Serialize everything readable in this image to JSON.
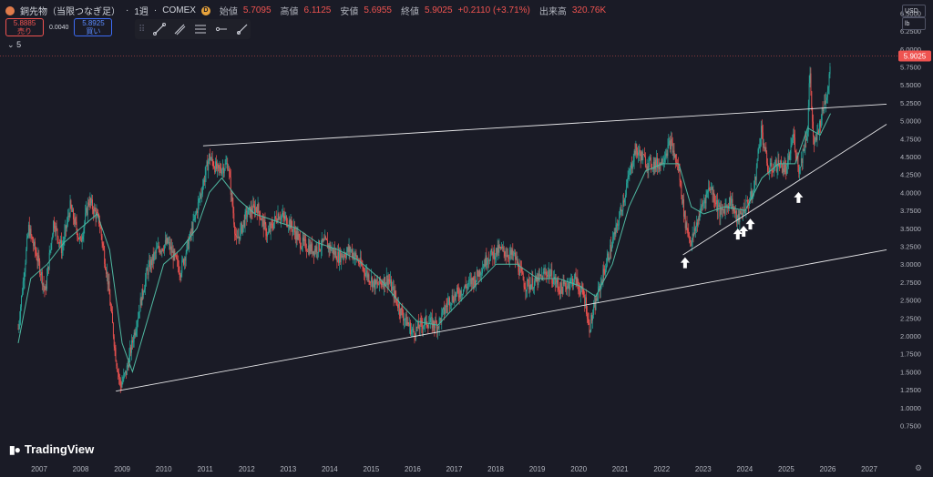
{
  "header": {
    "symbol": "銅先物（当限つなぎ足）",
    "interval": "1週",
    "exchange": "COMEX",
    "live_badge": "D",
    "open_label": "始値",
    "open_value": "5.7095",
    "high_label": "高値",
    "high_value": "6.1125",
    "low_label": "安値",
    "low_value": "5.6955",
    "close_label": "終値",
    "close_value": "5.9025",
    "change_value": "+0.2110 (+3.71%)",
    "volume_label": "出来高",
    "volume_value": "320.76K"
  },
  "quote": {
    "sell_price": "5.8885",
    "sell_label": "売り",
    "spread": "0.0040",
    "buy_price": "5.8925",
    "buy_label": "買い"
  },
  "indicator": {
    "label": "5",
    "chevron": "⌄"
  },
  "toolbar": {
    "grip_icon": "drag-grip-icon",
    "tools": [
      {
        "name": "trend-line-tool-icon"
      },
      {
        "name": "trend-angle-tool-icon"
      },
      {
        "name": "fib-retracement-tool-icon"
      },
      {
        "name": "horizontal-ray-tool-icon"
      },
      {
        "name": "ray-tool-icon"
      }
    ]
  },
  "unit_selectors": {
    "currency": "USD",
    "unit": "lb"
  },
  "branding": {
    "logo_text": "TradingView"
  },
  "colors": {
    "background": "#1a1b26",
    "up": "#26a69a",
    "down": "#ef5350",
    "moving_average": "#4fb7a0",
    "trendline": "#e8e8ea",
    "price_tag": "#ef5350"
  },
  "chart_data": {
    "type": "candlestick",
    "title": "銅先物（当限つなぎ足）",
    "xlabel": "",
    "ylabel": "",
    "y_ticks": [
      "0.7500",
      "1.0000",
      "1.2500",
      "1.5000",
      "1.7500",
      "2.0000",
      "2.2500",
      "2.5000",
      "2.7500",
      "3.0000",
      "3.2500",
      "3.5000",
      "3.7500",
      "4.0000",
      "4.2500",
      "4.5000",
      "4.7500",
      "5.0000",
      "5.2500",
      "5.5000",
      "5.7500",
      "6.0000",
      "6.2500",
      "6.5000"
    ],
    "x_ticks": [
      "2007",
      "2008",
      "2009",
      "2010",
      "2011",
      "2012",
      "2013",
      "2014",
      "2015",
      "2016",
      "2017",
      "2018",
      "2019",
      "2020",
      "2021",
      "2022",
      "2023",
      "2024",
      "2025",
      "2026",
      "2027"
    ],
    "last_price": "5.9025",
    "grid": false,
    "price_path": [
      [
        2006.5,
        2.1
      ],
      [
        2006.75,
        3.5
      ],
      [
        2007.0,
        3.0
      ],
      [
        2007.15,
        2.6
      ],
      [
        2007.35,
        3.6
      ],
      [
        2007.55,
        3.2
      ],
      [
        2007.75,
        3.8
      ],
      [
        2008.0,
        3.3
      ],
      [
        2008.2,
        3.9
      ],
      [
        2008.45,
        3.6
      ],
      [
        2008.65,
        2.8
      ],
      [
        2008.85,
        1.7
      ],
      [
        2008.96,
        1.3
      ],
      [
        2009.1,
        1.5
      ],
      [
        2009.35,
        2.2
      ],
      [
        2009.6,
        2.9
      ],
      [
        2009.85,
        3.2
      ],
      [
        2010.1,
        3.3
      ],
      [
        2010.4,
        2.9
      ],
      [
        2010.65,
        3.4
      ],
      [
        2010.9,
        4.0
      ],
      [
        2011.1,
        4.5
      ],
      [
        2011.3,
        4.3
      ],
      [
        2011.55,
        4.4
      ],
      [
        2011.75,
        3.3
      ],
      [
        2012.0,
        3.7
      ],
      [
        2012.25,
        3.8
      ],
      [
        2012.5,
        3.4
      ],
      [
        2012.75,
        3.7
      ],
      [
        2013.0,
        3.6
      ],
      [
        2013.3,
        3.3
      ],
      [
        2013.6,
        3.2
      ],
      [
        2013.9,
        3.3
      ],
      [
        2014.2,
        3.1
      ],
      [
        2014.5,
        3.2
      ],
      [
        2014.85,
        2.9
      ],
      [
        2015.1,
        2.7
      ],
      [
        2015.4,
        2.8
      ],
      [
        2015.7,
        2.35
      ],
      [
        2016.0,
        2.05
      ],
      [
        2016.3,
        2.2
      ],
      [
        2016.6,
        2.15
      ],
      [
        2016.87,
        2.5
      ],
      [
        2017.2,
        2.65
      ],
      [
        2017.5,
        2.8
      ],
      [
        2017.8,
        3.1
      ],
      [
        2018.1,
        3.2
      ],
      [
        2018.45,
        3.1
      ],
      [
        2018.7,
        2.7
      ],
      [
        2018.95,
        2.75
      ],
      [
        2019.25,
        2.9
      ],
      [
        2019.55,
        2.65
      ],
      [
        2019.9,
        2.8
      ],
      [
        2020.15,
        2.5
      ],
      [
        2020.24,
        2.1
      ],
      [
        2020.55,
        2.8
      ],
      [
        2020.9,
        3.5
      ],
      [
        2021.15,
        4.1
      ],
      [
        2021.35,
        4.6
      ],
      [
        2021.65,
        4.4
      ],
      [
        2021.95,
        4.4
      ],
      [
        2022.2,
        4.7
      ],
      [
        2022.4,
        4.3
      ],
      [
        2022.55,
        3.6
      ],
      [
        2022.7,
        3.3
      ],
      [
        2022.95,
        3.8
      ],
      [
        2023.15,
        4.1
      ],
      [
        2023.4,
        3.7
      ],
      [
        2023.65,
        3.9
      ],
      [
        2023.8,
        3.6
      ],
      [
        2024.0,
        3.8
      ],
      [
        2024.2,
        4.0
      ],
      [
        2024.38,
        4.9
      ],
      [
        2024.55,
        4.3
      ],
      [
        2024.8,
        4.4
      ],
      [
        2025.0,
        4.3
      ],
      [
        2025.15,
        4.8
      ],
      [
        2025.3,
        4.3
      ],
      [
        2025.5,
        4.9
      ],
      [
        2025.55,
        5.7
      ],
      [
        2025.65,
        4.6
      ],
      [
        2025.85,
        5.1
      ],
      [
        2026.0,
        5.5
      ],
      [
        2026.05,
        5.9
      ]
    ],
    "moving_average": {
      "color": "#4fb7a0",
      "points": [
        [
          2006.5,
          1.9
        ],
        [
          2006.8,
          2.8
        ],
        [
          2007.2,
          3.0
        ],
        [
          2007.6,
          3.3
        ],
        [
          2008.0,
          3.5
        ],
        [
          2008.4,
          3.7
        ],
        [
          2008.7,
          3.2
        ],
        [
          2009.0,
          1.9
        ],
        [
          2009.25,
          1.5
        ],
        [
          2009.6,
          2.2
        ],
        [
          2010.0,
          3.0
        ],
        [
          2010.4,
          3.2
        ],
        [
          2010.8,
          3.5
        ],
        [
          2011.1,
          4.0
        ],
        [
          2011.4,
          4.2
        ],
        [
          2011.8,
          3.9
        ],
        [
          2012.2,
          3.7
        ],
        [
          2012.7,
          3.6
        ],
        [
          2013.2,
          3.5
        ],
        [
          2013.7,
          3.3
        ],
        [
          2014.2,
          3.2
        ],
        [
          2014.7,
          3.05
        ],
        [
          2015.2,
          2.8
        ],
        [
          2015.7,
          2.45
        ],
        [
          2016.1,
          2.2
        ],
        [
          2016.6,
          2.15
        ],
        [
          2017.0,
          2.4
        ],
        [
          2017.5,
          2.7
        ],
        [
          2018.0,
          3.0
        ],
        [
          2018.5,
          3.0
        ],
        [
          2019.0,
          2.8
        ],
        [
          2019.5,
          2.8
        ],
        [
          2020.0,
          2.7
        ],
        [
          2020.4,
          2.55
        ],
        [
          2020.8,
          3.0
        ],
        [
          2021.2,
          3.8
        ],
        [
          2021.6,
          4.3
        ],
        [
          2022.0,
          4.4
        ],
        [
          2022.4,
          4.4
        ],
        [
          2022.7,
          3.8
        ],
        [
          2023.0,
          3.7
        ],
        [
          2023.5,
          3.8
        ],
        [
          2024.0,
          3.75
        ],
        [
          2024.4,
          4.2
        ],
        [
          2024.8,
          4.4
        ],
        [
          2025.2,
          4.4
        ],
        [
          2025.5,
          4.9
        ],
        [
          2025.8,
          4.8
        ],
        [
          2026.05,
          5.1
        ]
      ]
    },
    "trendlines": [
      {
        "name": "channel-top-trendline",
        "x1": 2010.95,
        "y1": 4.65,
        "x2": 2027.4,
        "y2": 5.23
      },
      {
        "name": "channel-bottom-trendline",
        "x1": 2008.85,
        "y1": 1.23,
        "x2": 2027.4,
        "y2": 3.2
      },
      {
        "name": "rising-support-trendline",
        "x1": 2022.5,
        "y1": 3.13,
        "x2": 2027.4,
        "y2": 4.95
      }
    ],
    "annotations": [
      {
        "name": "support-touch-arrow-1",
        "x": 2022.55,
        "y": 3.02
      },
      {
        "name": "support-touch-arrow-2",
        "x": 2023.82,
        "y": 3.42
      },
      {
        "name": "support-touch-arrow-3",
        "x": 2023.96,
        "y": 3.46
      },
      {
        "name": "support-touch-arrow-4",
        "x": 2024.12,
        "y": 3.56
      },
      {
        "name": "support-touch-arrow-5",
        "x": 2025.28,
        "y": 3.93
      }
    ]
  }
}
